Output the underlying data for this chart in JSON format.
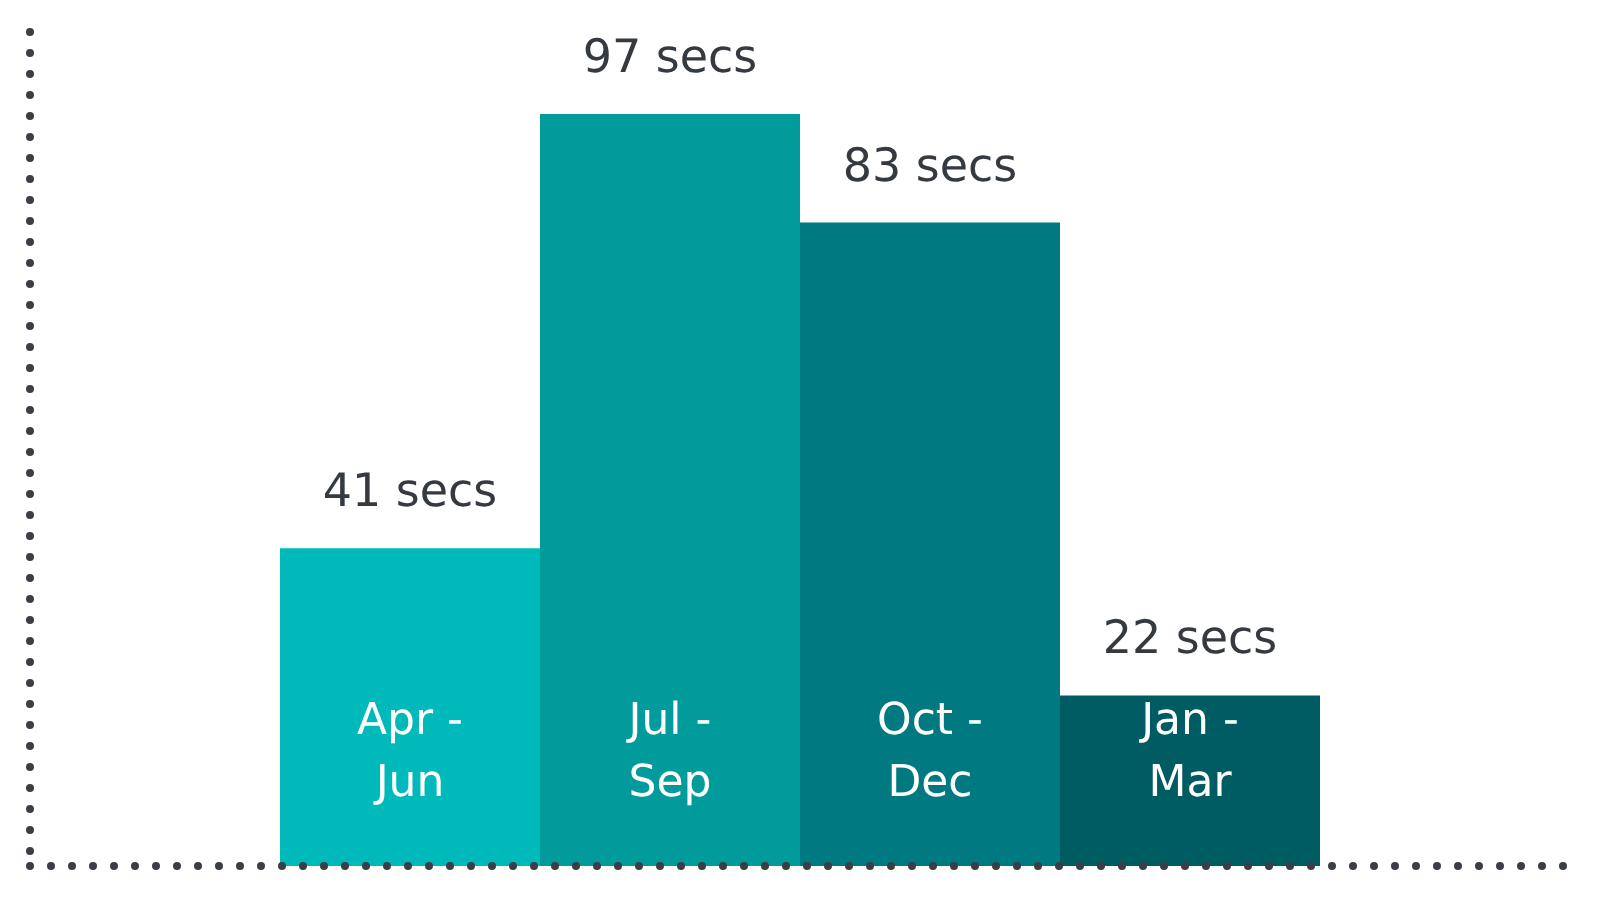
{
  "chart_data": {
    "type": "bar",
    "categories": [
      "Apr -\nJun",
      "Jul -\nSep",
      "Oct -\nDec",
      "Jan -\nMar"
    ],
    "values": [
      41,
      97,
      83,
      22
    ],
    "colors": [
      "#00b9bb",
      "#009b9a",
      "#007a80",
      "#005c63"
    ],
    "value_labels": [
      "41 secs",
      "97 secs",
      "83 secs",
      "22 secs"
    ],
    "tick_labels": "x"
  }
}
